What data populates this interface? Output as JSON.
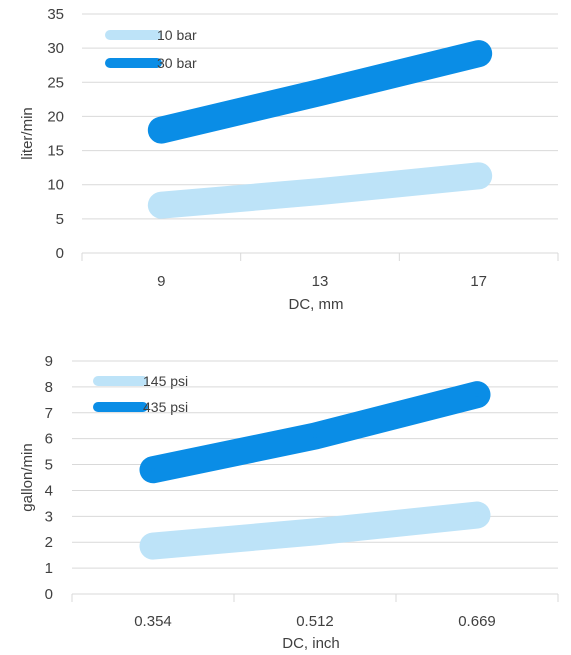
{
  "colors": {
    "light": "#bde3f8",
    "dark": "#0a8de6"
  },
  "chart_data": [
    {
      "type": "line",
      "categories": [
        "9",
        "13",
        "17"
      ],
      "ylim": [
        0,
        35
      ],
      "yticks": [
        "0",
        "5",
        "10",
        "15",
        "20",
        "25",
        "30",
        "35"
      ],
      "xlabel": "DC, mm",
      "ylabel": "liter/min",
      "legend": "top-left",
      "series": [
        {
          "name": "10 bar",
          "values": [
            7,
            9,
            11.3
          ],
          "color": "#bde3f8"
        },
        {
          "name": "30 bar",
          "values": [
            18,
            23.5,
            29.2
          ],
          "color": "#0a8de6"
        }
      ]
    },
    {
      "type": "line",
      "categories": [
        "0.354",
        "0.512",
        "0.669"
      ],
      "ylim": [
        0,
        9
      ],
      "yticks": [
        "0",
        "1",
        "2",
        "3",
        "4",
        "5",
        "6",
        "7",
        "8",
        "9"
      ],
      "xlabel": "DC, inch",
      "ylabel": "gallon/min",
      "legend": "top-left",
      "series": [
        {
          "name": "145 psi",
          "values": [
            1.85,
            2.4,
            3.05
          ],
          "color": "#bde3f8"
        },
        {
          "name": "435 psi",
          "values": [
            4.8,
            6.1,
            7.7
          ],
          "color": "#0a8de6"
        }
      ]
    }
  ]
}
